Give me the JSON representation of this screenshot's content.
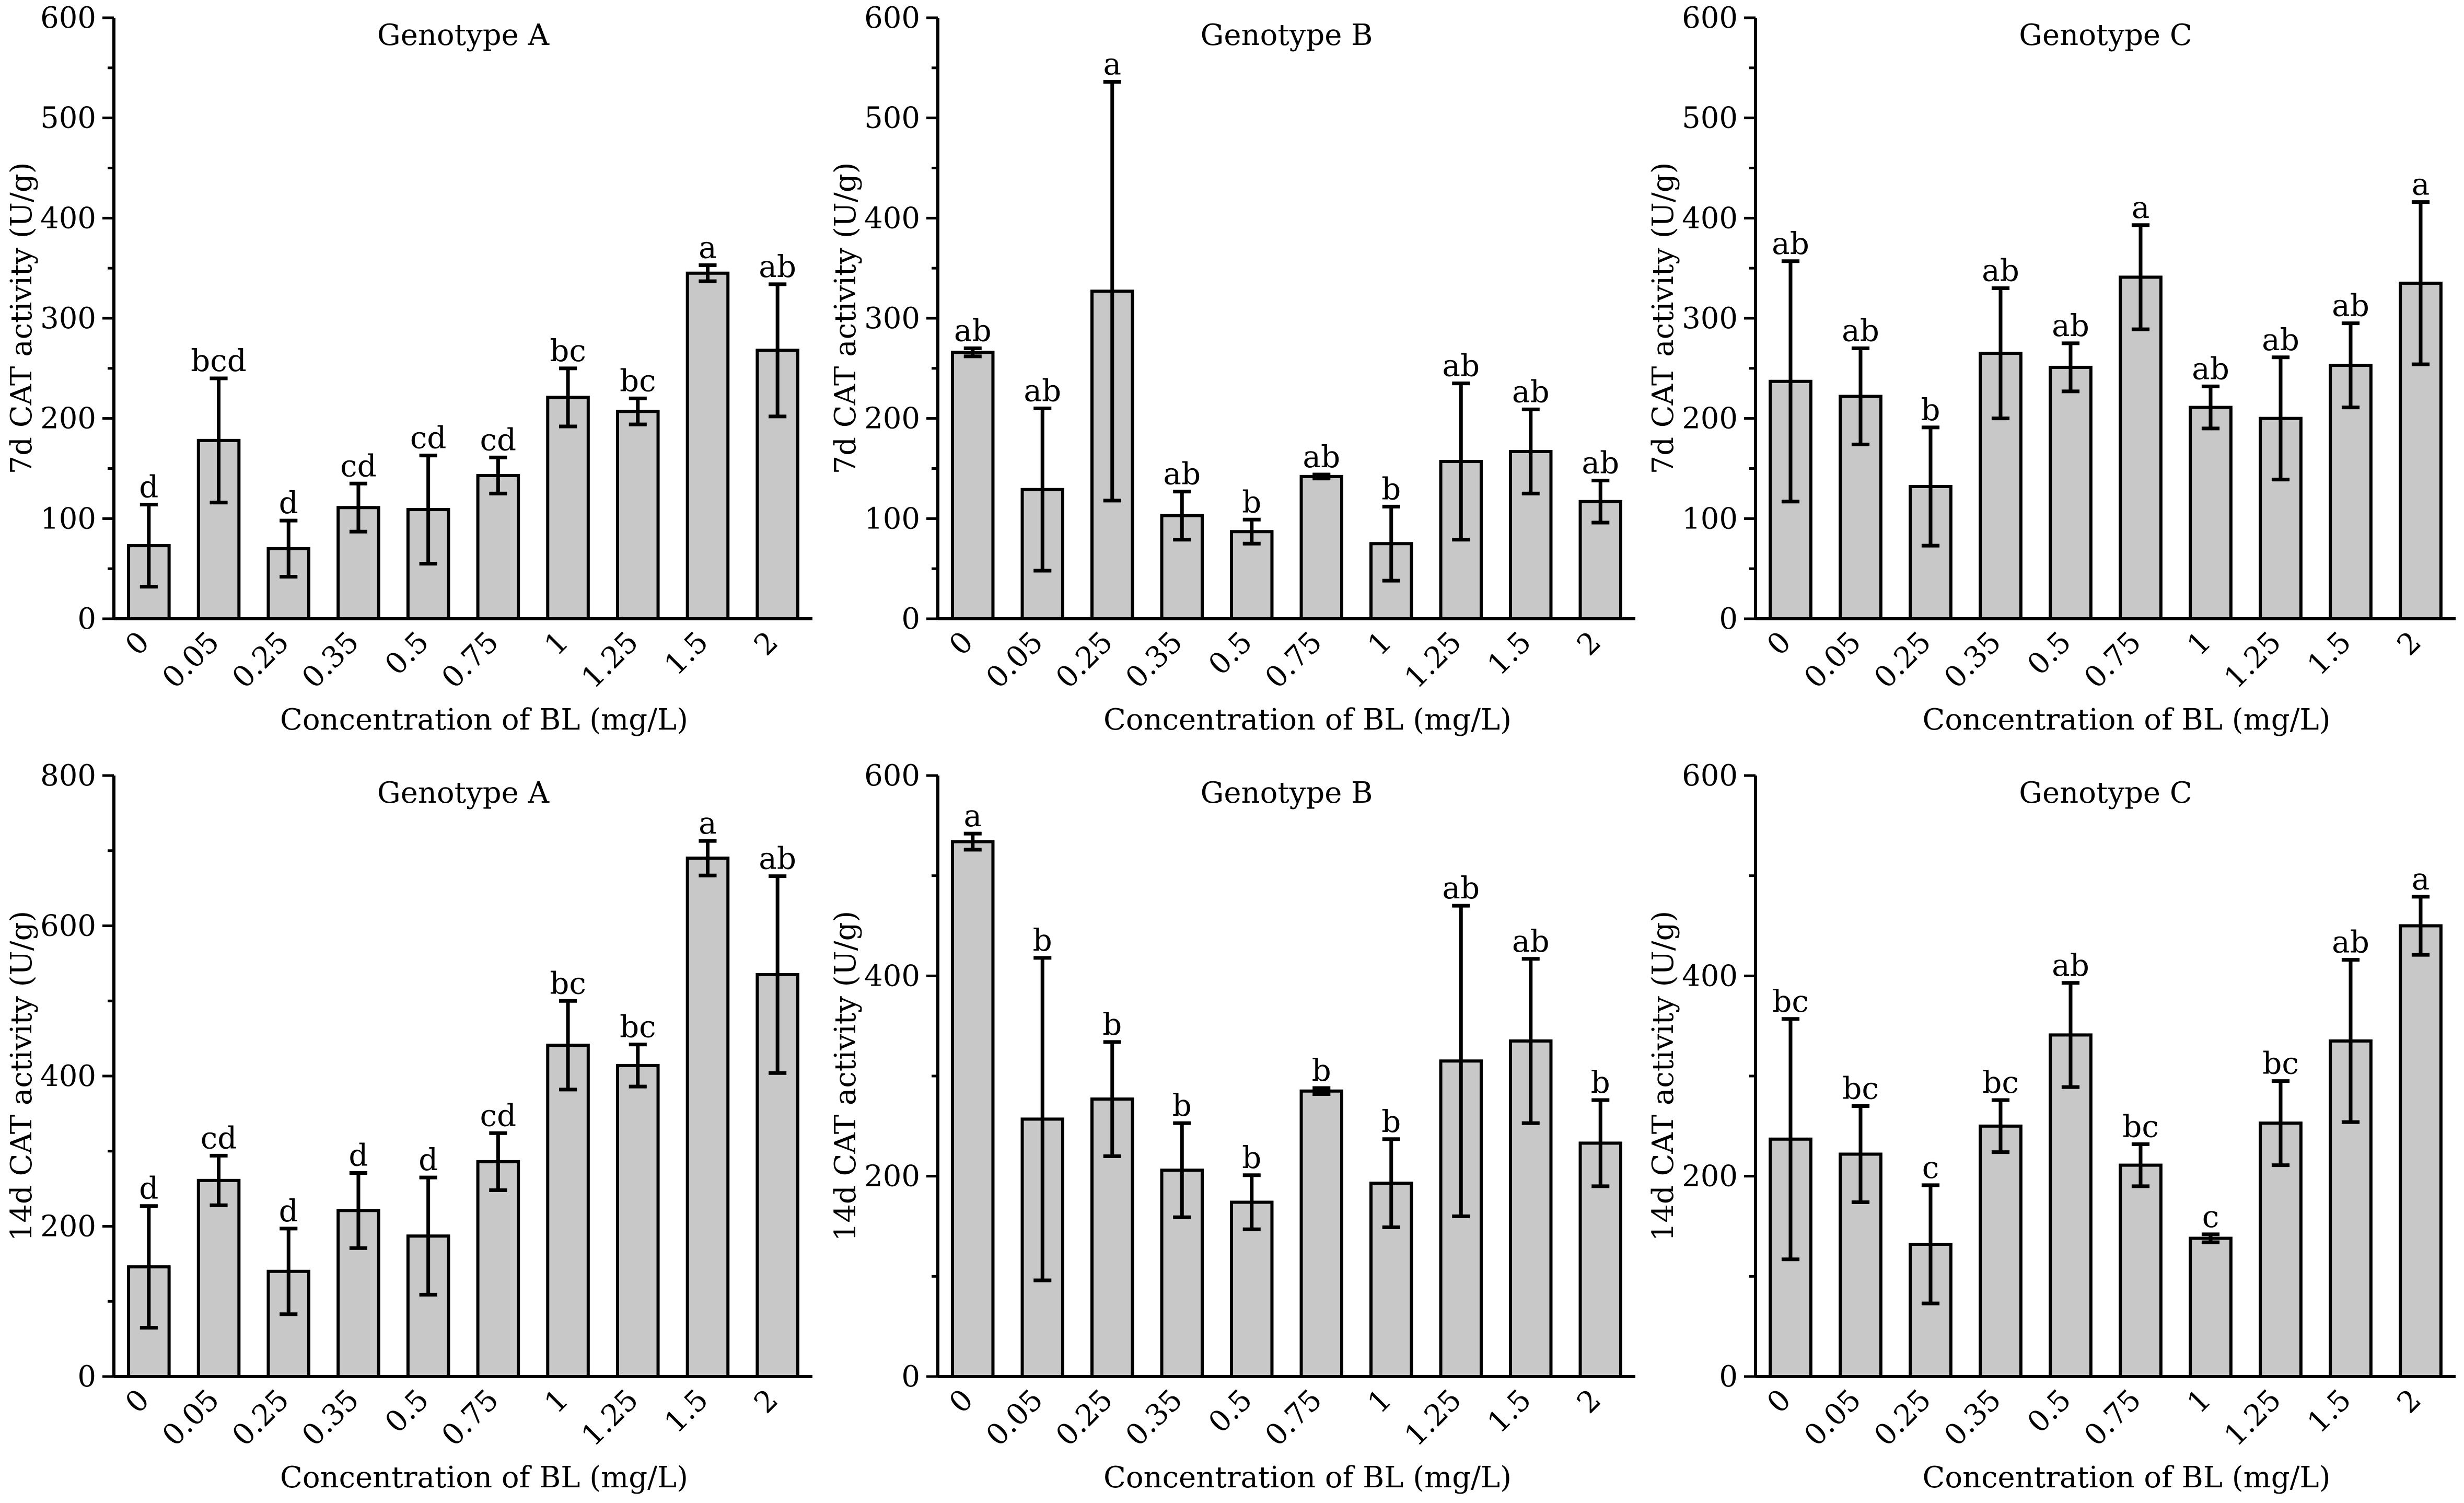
{
  "figure": {
    "xlabel": "Concentration of BL (mg/L)",
    "categories": [
      "0",
      "0.05",
      "0.25",
      "0.35",
      "0.5",
      "0.75",
      "1",
      "1.25",
      "1.5",
      "2"
    ]
  },
  "chart_data": [
    {
      "type": "bar",
      "title": "Genotype A",
      "ylabel": "7d CAT activity (U/g)",
      "xlabel": "Concentration of BL (mg/L)",
      "categories": [
        "0",
        "0.05",
        "0.25",
        "0.35",
        "0.5",
        "0.75",
        "1",
        "1.25",
        "1.5",
        "2"
      ],
      "values": [
        73,
        178,
        70,
        111,
        109,
        143,
        221,
        207,
        345,
        268
      ],
      "errors": [
        41,
        62,
        28,
        24,
        54,
        18,
        29,
        13,
        8,
        66
      ],
      "letters": [
        "d",
        "bcd",
        "d",
        "cd",
        "cd",
        "cd",
        "bc",
        "bc",
        "a",
        "ab"
      ],
      "ylim": [
        0,
        600
      ],
      "yticks": [
        0,
        100,
        200,
        300,
        400,
        500,
        600
      ]
    },
    {
      "type": "bar",
      "title": "Genotype B",
      "ylabel": "7d CAT activity (U/g)",
      "xlabel": "Concentration of BL (mg/L)",
      "categories": [
        "0",
        "0.05",
        "0.25",
        "0.35",
        "0.5",
        "0.75",
        "1",
        "1.25",
        "1.5",
        "2"
      ],
      "values": [
        266,
        129,
        327,
        103,
        87,
        142,
        75,
        157,
        167,
        117
      ],
      "errors": [
        4,
        81,
        209,
        24,
        12,
        2,
        37,
        78,
        42,
        21
      ],
      "letters": [
        "ab",
        "ab",
        "a",
        "ab",
        "b",
        "ab",
        "b",
        "ab",
        "ab",
        "ab"
      ],
      "ylim": [
        0,
        600
      ],
      "yticks": [
        0,
        100,
        200,
        300,
        400,
        500,
        600
      ]
    },
    {
      "type": "bar",
      "title": "Genotype C",
      "ylabel": "7d CAT activity (U/g)",
      "xlabel": "Concentration of BL (mg/L)",
      "categories": [
        "0",
        "0.05",
        "0.25",
        "0.35",
        "0.5",
        "0.75",
        "1",
        "1.25",
        "1.5",
        "2"
      ],
      "values": [
        237,
        222,
        132,
        265,
        251,
        341,
        211,
        200,
        253,
        335
      ],
      "errors": [
        120,
        48,
        59,
        65,
        24,
        52,
        21,
        61,
        42,
        81
      ],
      "letters": [
        "ab",
        "ab",
        "b",
        "ab",
        "ab",
        "a",
        "ab",
        "ab",
        "ab",
        "a"
      ],
      "ylim": [
        0,
        600
      ],
      "yticks": [
        0,
        100,
        200,
        300,
        400,
        500,
        600
      ]
    },
    {
      "type": "bar",
      "title": "Genotype A",
      "ylabel": "14d CAT activity (U/g)",
      "xlabel": "Concentration of BL (mg/L)",
      "categories": [
        "0",
        "0.05",
        "0.25",
        "0.35",
        "0.5",
        "0.75",
        "1",
        "1.25",
        "1.5",
        "2"
      ],
      "values": [
        146,
        261,
        140,
        221,
        187,
        286,
        441,
        414,
        690,
        535
      ],
      "errors": [
        81,
        33,
        57,
        50,
        78,
        38,
        59,
        28,
        23,
        131
      ],
      "letters": [
        "d",
        "cd",
        "d",
        "d",
        "d",
        "cd",
        "bc",
        "bc",
        "a",
        "ab"
      ],
      "ylim": [
        0,
        800
      ],
      "yticks": [
        0,
        200,
        400,
        600,
        800
      ]
    },
    {
      "type": "bar",
      "title": "Genotype B",
      "ylabel": "14d CAT activity (U/g)",
      "xlabel": "Concentration of BL (mg/L)",
      "categories": [
        "0",
        "0.05",
        "0.25",
        "0.35",
        "0.5",
        "0.75",
        "1",
        "1.25",
        "1.5",
        "2"
      ],
      "values": [
        534,
        257,
        277,
        206,
        174,
        285,
        193,
        315,
        335,
        233
      ],
      "errors": [
        8,
        161,
        57,
        47,
        27,
        3,
        44,
        155,
        82,
        43
      ],
      "letters": [
        "a",
        "b",
        "b",
        "b",
        "b",
        "b",
        "b",
        "ab",
        "ab",
        "b"
      ],
      "ylim": [
        0,
        600
      ],
      "yticks": [
        0,
        200,
        400,
        600
      ]
    },
    {
      "type": "bar",
      "title": "Genotype C",
      "ylabel": "14d CAT activity (U/g)",
      "xlabel": "Concentration of BL (mg/L)",
      "categories": [
        "0",
        "0.05",
        "0.25",
        "0.35",
        "0.5",
        "0.75",
        "1",
        "1.25",
        "1.5",
        "2"
      ],
      "values": [
        237,
        222,
        132,
        250,
        341,
        211,
        138,
        253,
        335,
        450
      ],
      "errors": [
        120,
        48,
        59,
        26,
        52,
        21,
        4,
        42,
        81,
        29
      ],
      "letters": [
        "bc",
        "bc",
        "c",
        "bc",
        "ab",
        "bc",
        "c",
        "bc",
        "ab",
        "a"
      ],
      "ylim": [
        0,
        600
      ],
      "yticks": [
        0,
        200,
        400,
        600
      ]
    }
  ]
}
